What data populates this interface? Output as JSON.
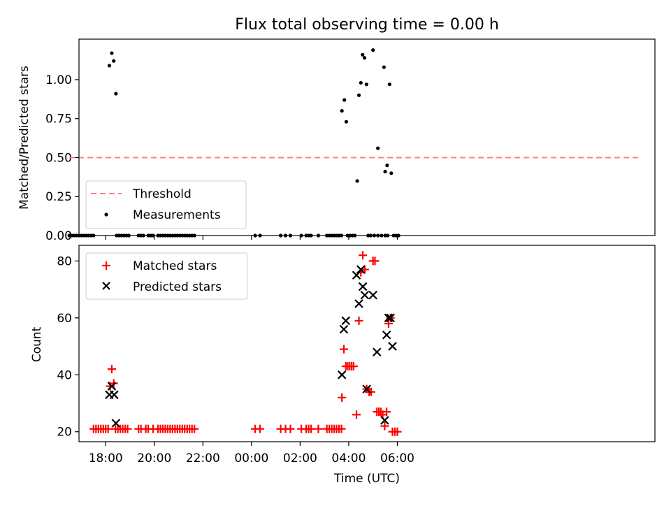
{
  "chart_data": [
    {
      "type": "scatter",
      "title": "Flux total observing time = 0.00 h",
      "xlabel": "",
      "ylabel": "Matched/Predicted stars",
      "xlim": [
        -1.1,
        22.6
      ],
      "ylim": [
        0,
        1.26
      ],
      "yticks": [
        "0.00",
        "0.25",
        "0.50",
        "0.75",
        "1.00"
      ],
      "legend": {
        "position": "lower-left",
        "entries": [
          "Threshold",
          "Measurements"
        ]
      },
      "threshold": {
        "name": "Threshold",
        "value": 0.5,
        "x_range": [
          -1.5,
          22.0
        ],
        "color": "#ff7f7f"
      },
      "series": [
        {
          "name": "Measurements",
          "color": "#000000",
          "points": [
            [
              -1.5,
              0
            ],
            [
              -1.4,
              0
            ],
            [
              -1.3,
              0
            ],
            [
              -1.2,
              0
            ],
            [
              -1.1,
              0
            ],
            [
              -1.0,
              0
            ],
            [
              -0.9,
              0
            ],
            [
              -0.8,
              0
            ],
            [
              -0.7,
              0
            ],
            [
              -0.6,
              0
            ],
            [
              -0.5,
              0
            ],
            [
              0.15,
              1.09
            ],
            [
              0.25,
              1.17
            ],
            [
              0.33,
              1.12
            ],
            [
              0.42,
              0.91
            ],
            [
              0.45,
              0
            ],
            [
              0.55,
              0
            ],
            [
              0.65,
              0
            ],
            [
              0.75,
              0
            ],
            [
              0.85,
              0
            ],
            [
              0.95,
              0
            ],
            [
              1.35,
              0
            ],
            [
              1.45,
              0
            ],
            [
              1.55,
              0
            ],
            [
              1.75,
              0
            ],
            [
              1.85,
              0
            ],
            [
              1.95,
              0
            ],
            [
              2.15,
              0
            ],
            [
              2.25,
              0
            ],
            [
              2.35,
              0
            ],
            [
              2.45,
              0
            ],
            [
              2.55,
              0
            ],
            [
              2.65,
              0
            ],
            [
              2.75,
              0
            ],
            [
              2.85,
              0
            ],
            [
              2.95,
              0
            ],
            [
              3.05,
              0
            ],
            [
              3.15,
              0
            ],
            [
              3.25,
              0
            ],
            [
              3.35,
              0
            ],
            [
              3.45,
              0
            ],
            [
              3.55,
              0
            ],
            [
              3.65,
              0
            ],
            [
              6.15,
              0
            ],
            [
              6.35,
              0
            ],
            [
              7.2,
              0
            ],
            [
              7.4,
              0
            ],
            [
              7.6,
              0
            ],
            [
              8.05,
              0
            ],
            [
              8.25,
              0
            ],
            [
              8.35,
              0
            ],
            [
              8.45,
              0
            ],
            [
              8.75,
              0
            ],
            [
              9.1,
              0
            ],
            [
              9.2,
              0
            ],
            [
              9.3,
              0
            ],
            [
              9.4,
              0
            ],
            [
              9.5,
              0
            ],
            [
              9.6,
              0
            ],
            [
              9.7,
              0
            ],
            [
              9.72,
              0.8
            ],
            [
              9.82,
              0.87
            ],
            [
              9.9,
              0.73
            ],
            [
              9.95,
              0
            ],
            [
              10.05,
              0
            ],
            [
              10.15,
              0
            ],
            [
              10.25,
              0
            ],
            [
              10.35,
              0.35
            ],
            [
              10.42,
              0.9
            ],
            [
              10.5,
              0.98
            ],
            [
              10.57,
              1.16
            ],
            [
              10.65,
              1.14
            ],
            [
              10.73,
              0.97
            ],
            [
              10.8,
              0
            ],
            [
              10.9,
              0
            ],
            [
              11.05,
              0
            ],
            [
              11.2,
              0
            ],
            [
              11.35,
              0
            ],
            [
              11.5,
              0
            ],
            [
              11.6,
              0
            ],
            [
              11.0,
              1.19
            ],
            [
              11.2,
              0.56
            ],
            [
              11.45,
              1.08
            ],
            [
              11.5,
              0.41
            ],
            [
              11.58,
              0.45
            ],
            [
              11.68,
              0.97
            ],
            [
              11.75,
              0.4
            ],
            [
              11.85,
              0
            ],
            [
              11.95,
              0
            ],
            [
              12.05,
              0
            ]
          ]
        }
      ]
    },
    {
      "type": "scatter",
      "title": "",
      "xlabel": "Time (UTC)",
      "ylabel": "Count",
      "xlim": [
        -1.1,
        22.6
      ],
      "ylim": [
        16.5,
        85.5
      ],
      "xticks": [
        {
          "value": 0,
          "label": "18:00"
        },
        {
          "value": 2,
          "label": "20:00"
        },
        {
          "value": 4,
          "label": "22:00"
        },
        {
          "value": 6,
          "label": "00:00"
        },
        {
          "value": 8,
          "label": "02:00"
        },
        {
          "value": 10,
          "label": "04:00"
        },
        {
          "value": 12,
          "label": "06:00"
        }
      ],
      "yticks": [
        "20",
        "40",
        "60",
        "80"
      ],
      "legend": {
        "position": "top-left",
        "entries": [
          "Matched stars",
          "Predicted stars"
        ]
      },
      "series": [
        {
          "name": "Matched stars",
          "marker": "plus",
          "color": "#ff0000",
          "points": [
            [
              -0.5,
              21
            ],
            [
              -0.4,
              21
            ],
            [
              -0.3,
              21
            ],
            [
              -0.2,
              21
            ],
            [
              -0.1,
              21
            ],
            [
              0.0,
              21
            ],
            [
              0.1,
              21
            ],
            [
              0.18,
              36
            ],
            [
              0.25,
              42
            ],
            [
              0.33,
              37
            ],
            [
              0.4,
              21
            ],
            [
              0.5,
              21
            ],
            [
              0.6,
              21
            ],
            [
              0.7,
              21
            ],
            [
              0.8,
              21
            ],
            [
              0.9,
              21
            ],
            [
              1.35,
              21
            ],
            [
              1.45,
              21
            ],
            [
              1.65,
              21
            ],
            [
              1.75,
              21
            ],
            [
              1.95,
              21
            ],
            [
              2.15,
              21
            ],
            [
              2.25,
              21
            ],
            [
              2.35,
              21
            ],
            [
              2.45,
              21
            ],
            [
              2.55,
              21
            ],
            [
              2.65,
              21
            ],
            [
              2.75,
              21
            ],
            [
              2.85,
              21
            ],
            [
              2.95,
              21
            ],
            [
              3.05,
              21
            ],
            [
              3.15,
              21
            ],
            [
              3.25,
              21
            ],
            [
              3.35,
              21
            ],
            [
              3.45,
              21
            ],
            [
              3.55,
              21
            ],
            [
              3.65,
              21
            ],
            [
              6.15,
              21
            ],
            [
              6.35,
              21
            ],
            [
              7.2,
              21
            ],
            [
              7.4,
              21
            ],
            [
              7.6,
              21
            ],
            [
              8.05,
              21
            ],
            [
              8.25,
              21
            ],
            [
              8.35,
              21
            ],
            [
              8.45,
              21
            ],
            [
              8.75,
              21
            ],
            [
              9.1,
              21
            ],
            [
              9.2,
              21
            ],
            [
              9.3,
              21
            ],
            [
              9.4,
              21
            ],
            [
              9.5,
              21
            ],
            [
              9.6,
              21
            ],
            [
              9.7,
              21
            ],
            [
              9.72,
              32
            ],
            [
              9.8,
              49
            ],
            [
              9.88,
              43
            ],
            [
              9.96,
              43
            ],
            [
              10.04,
              43
            ],
            [
              10.12,
              43
            ],
            [
              10.2,
              43
            ],
            [
              10.32,
              26
            ],
            [
              10.42,
              59
            ],
            [
              10.5,
              76
            ],
            [
              10.58,
              82
            ],
            [
              10.66,
              77
            ],
            [
              10.74,
              35
            ],
            [
              10.84,
              34
            ],
            [
              10.92,
              34
            ],
            [
              11.0,
              80
            ],
            [
              11.08,
              80
            ],
            [
              11.16,
              27
            ],
            [
              11.24,
              27
            ],
            [
              11.32,
              27
            ],
            [
              11.4,
              26
            ],
            [
              11.48,
              22
            ],
            [
              11.56,
              27
            ],
            [
              11.64,
              58
            ],
            [
              11.72,
              60
            ],
            [
              11.8,
              20
            ],
            [
              11.9,
              20
            ],
            [
              12.0,
              20
            ]
          ]
        },
        {
          "name": "Predicted stars",
          "marker": "x",
          "color": "#000000",
          "points": [
            [
              0.15,
              33
            ],
            [
              0.25,
              36
            ],
            [
              0.35,
              33
            ],
            [
              0.42,
              23
            ],
            [
              9.72,
              40
            ],
            [
              9.8,
              56
            ],
            [
              9.88,
              59
            ],
            [
              10.32,
              75
            ],
            [
              10.42,
              65
            ],
            [
              10.5,
              77
            ],
            [
              10.58,
              71
            ],
            [
              10.66,
              68
            ],
            [
              10.74,
              35
            ],
            [
              11.0,
              68
            ],
            [
              11.16,
              48
            ],
            [
              11.48,
              24
            ],
            [
              11.56,
              54
            ],
            [
              11.64,
              60
            ],
            [
              11.72,
              60
            ],
            [
              11.8,
              50
            ]
          ]
        }
      ]
    }
  ]
}
